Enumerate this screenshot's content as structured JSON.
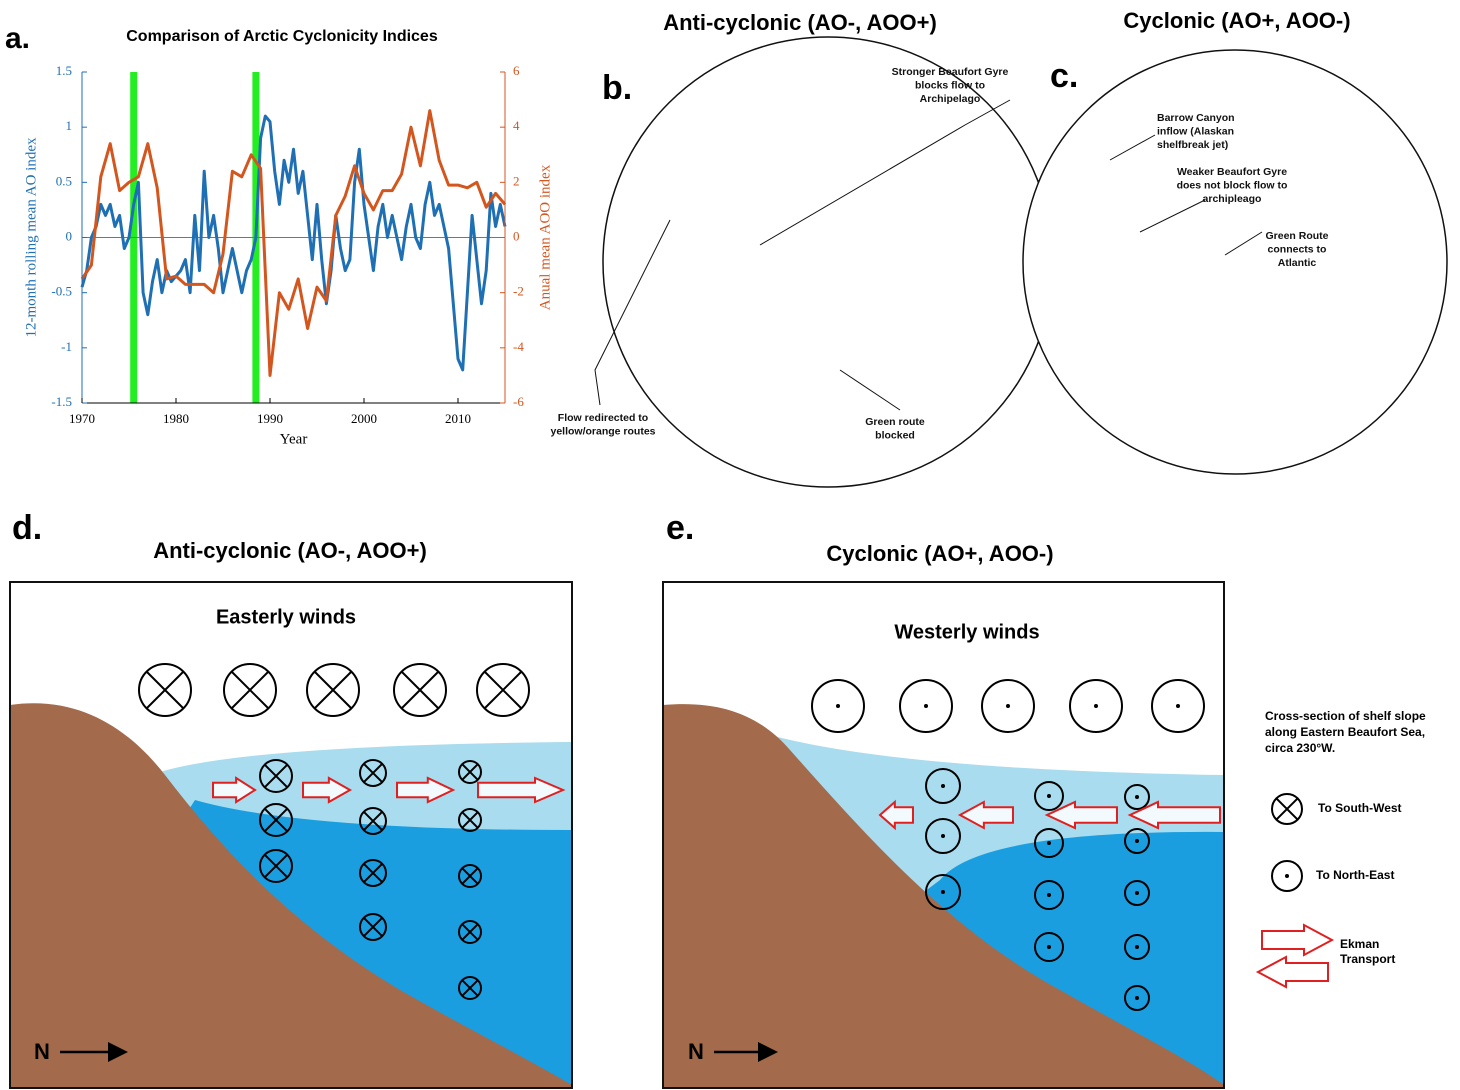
{
  "chart_data": {
    "type": "line",
    "panel_label": "a.",
    "title": "Comparison of Arctic Cyclonicity Indices",
    "xlabel": "Year",
    "ylabel": "12-month rolling mean AO index",
    "y2label": "Anual mean AOO index",
    "xlim": [
      1970,
      2015
    ],
    "ylim": [
      -1.5,
      1.5
    ],
    "y2lim": [
      -6,
      6
    ],
    "xticks": [
      1970,
      1980,
      1990,
      2000,
      2010
    ],
    "yticks": [
      -1.5,
      -1,
      -0.5,
      0,
      0.5,
      1,
      1.5
    ],
    "y2ticks": [
      -6,
      -4,
      -2,
      0,
      2,
      4,
      6
    ],
    "series": [
      {
        "color": "#1f6fb4",
        "x": [
          1970,
          1970.5,
          1971,
          1971.5,
          1972,
          1972.5,
          1973,
          1973.5,
          1974,
          1974.5,
          1975,
          1975.5,
          1976,
          1976.5,
          1977,
          1977.5,
          1978,
          1978.5,
          1979,
          1979.5,
          1980,
          1980.5,
          1981,
          1981.5,
          1982,
          1982.5,
          1983,
          1983.5,
          1984,
          1984.5,
          1985,
          1985.5,
          1986,
          1986.5,
          1987,
          1987.5,
          1988,
          1988.5,
          1989,
          1989.5,
          1990,
          1990.5,
          1991,
          1991.5,
          1992,
          1992.5,
          1993,
          1993.5,
          1994,
          1994.5,
          1995,
          1995.5,
          1996,
          1996.5,
          1997,
          1997.5,
          1998,
          1998.5,
          1999,
          1999.5,
          2000,
          2000.5,
          2001,
          2001.5,
          2002,
          2002.5,
          2003,
          2003.5,
          2004,
          2004.5,
          2005,
          2005.5,
          2006,
          2006.5,
          2007,
          2007.5,
          2008,
          2008.5,
          2009,
          2009.5,
          2010,
          2010.5,
          2011,
          2011.5,
          2012,
          2012.5,
          2013,
          2013.5,
          2014,
          2014.5,
          2015
        ],
        "values": [
          -0.45,
          -0.3,
          0.0,
          0.1,
          0.3,
          0.2,
          0.3,
          0.1,
          0.2,
          -0.1,
          0.0,
          0.3,
          0.5,
          -0.5,
          -0.7,
          -0.4,
          -0.2,
          -0.5,
          -0.3,
          -0.4,
          -0.35,
          -0.3,
          -0.2,
          -0.5,
          0.2,
          -0.3,
          0.6,
          0.0,
          0.2,
          -0.1,
          -0.5,
          -0.3,
          -0.1,
          -0.3,
          -0.5,
          -0.3,
          -0.2,
          0.0,
          0.9,
          1.1,
          1.05,
          0.6,
          0.3,
          0.7,
          0.5,
          0.8,
          0.4,
          0.6,
          0.2,
          -0.2,
          0.3,
          -0.2,
          -0.6,
          -0.3,
          0.2,
          -0.1,
          -0.3,
          -0.2,
          0.5,
          0.8,
          0.3,
          0.0,
          -0.3,
          0.1,
          0.3,
          0.0,
          0.2,
          0.0,
          -0.2,
          0.1,
          0.3,
          0.0,
          -0.1,
          0.3,
          0.5,
          0.2,
          0.3,
          0.1,
          -0.1,
          -0.6,
          -1.1,
          -1.2,
          -0.5,
          0.2,
          -0.2,
          -0.6,
          -0.3,
          0.4,
          0.1,
          0.3,
          0.1
        ]
      },
      {
        "color": "#d4561f",
        "axis": "y2",
        "x": [
          1970,
          1971,
          1972,
          1973,
          1974,
          1975,
          1976,
          1977,
          1978,
          1979,
          1980,
          1981,
          1982,
          1983,
          1984,
          1985,
          1986,
          1987,
          1988,
          1989,
          1990,
          1991,
          1992,
          1993,
          1994,
          1995,
          1996,
          1997,
          1998,
          1999,
          2000,
          2001,
          2002,
          2003,
          2004,
          2005,
          2006,
          2007,
          2008,
          2009,
          2010,
          2011,
          2012,
          2013,
          2014,
          2015
        ],
        "values": [
          -1.5,
          -1,
          2.2,
          3.4,
          1.7,
          2,
          2.2,
          3.4,
          1.8,
          -1.5,
          -1.4,
          -1.7,
          -1.7,
          -1.7,
          -2,
          -0.6,
          2.4,
          2.2,
          3,
          2.5,
          -5,
          -2,
          -2.6,
          -1.5,
          -3.3,
          -1.8,
          -2.3,
          0.8,
          1.5,
          2.6,
          1.6,
          1,
          1.7,
          1.7,
          2.3,
          4,
          2.6,
          4.6,
          2.8,
          1.9,
          1.9,
          1.8,
          2,
          1.1,
          1.6,
          1.2
        ]
      }
    ],
    "highlights": [
      {
        "x": 1975.5,
        "color": "#22ee22"
      },
      {
        "x": 1988.5,
        "color": "#22ee22"
      }
    ],
    "reference_lines": [
      {
        "axis": "y2",
        "value": 0,
        "color": "#d4561f"
      }
    ]
  },
  "panels": {
    "b": {
      "label": "b.",
      "title": "Anti-cyclonic (AO-, AOO+)",
      "annotations": [
        {
          "lines": [
            "Stronger Beaufort Gyre",
            "blocks flow to",
            "Archipelago"
          ]
        },
        {
          "lines": [
            "Flow redirected to",
            "yellow/orange routes"
          ]
        },
        {
          "lines": [
            "Green route",
            "blocked"
          ]
        }
      ]
    },
    "c": {
      "label": "c.",
      "title": "Cyclonic (AO+, AOO-)",
      "annotations": [
        {
          "lines": [
            "Barrow Canyon",
            "inflow (Alaskan",
            "shelfbreak jet)"
          ]
        },
        {
          "lines": [
            "Weaker Beaufort Gyre",
            "does not block flow to",
            "archipleago"
          ]
        },
        {
          "lines": [
            "Green Route",
            "connects to",
            "Atlantic"
          ]
        }
      ]
    },
    "d": {
      "label": "d.",
      "title": "Anti-cyclonic (AO-, AOO+)",
      "wind": "Easterly winds",
      "north": "N"
    },
    "e": {
      "label": "e.",
      "title": "Cyclonic (AO+, AOO-)",
      "wind": "Westerly winds",
      "north": "N"
    },
    "legend": {
      "caption": [
        "Cross-section of shelf slope",
        "along Eastern Beaufort Sea,",
        "circa 230°W."
      ],
      "items": [
        {
          "label": "To South-West"
        },
        {
          "label": "To North-East"
        },
        {
          "lines": [
            "Ekman",
            "Transport"
          ]
        }
      ]
    }
  }
}
